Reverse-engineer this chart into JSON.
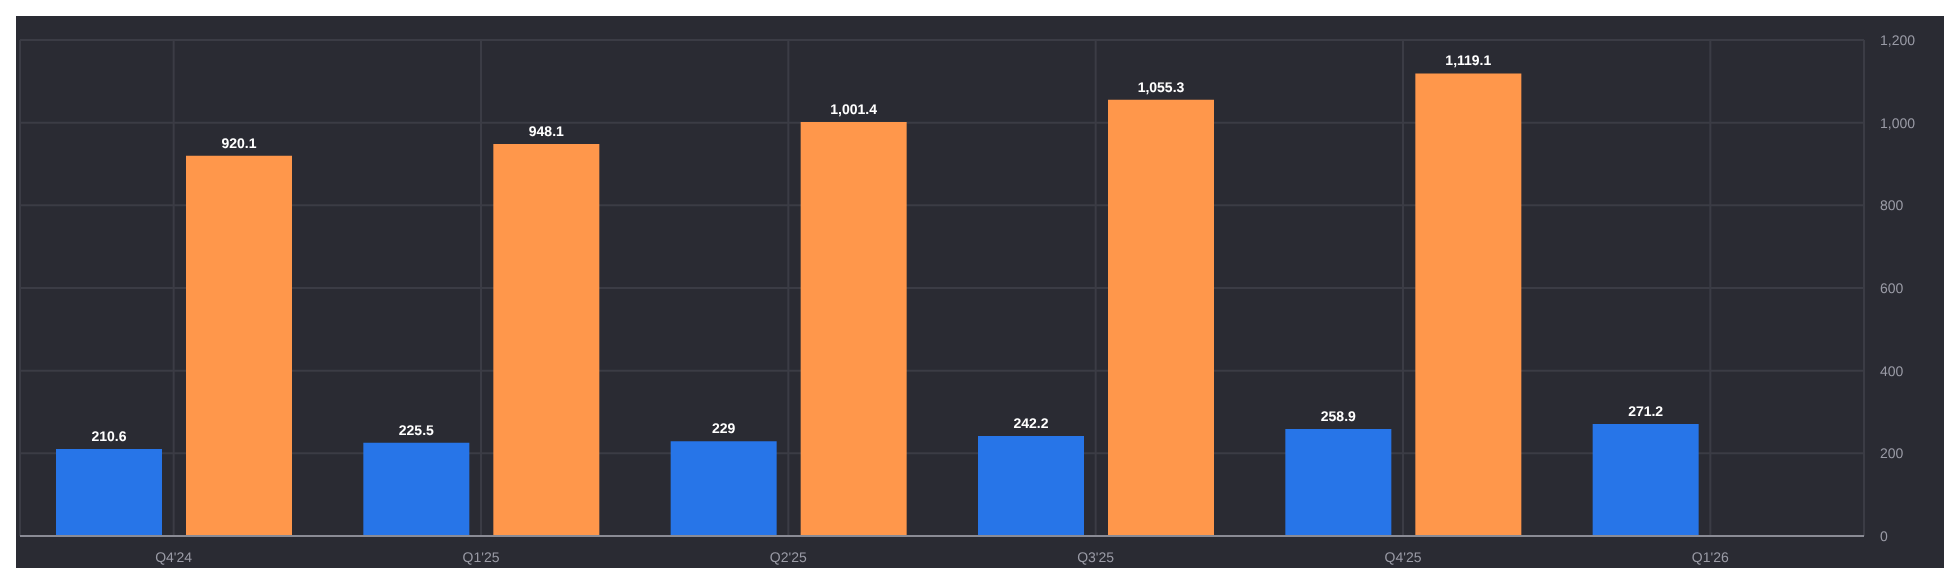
{
  "chart_data": {
    "type": "bar",
    "categories": [
      "Q4'24",
      "Q1'25",
      "Q2'25",
      "Q3'25",
      "Q4'25",
      "Q1'26"
    ],
    "series": [
      {
        "color": "#2775e8",
        "values": [
          210.6,
          225.5,
          229,
          242.2,
          258.9,
          271.2
        ],
        "value_labels": [
          "210.6",
          "225.5",
          "229",
          "242.2",
          "258.9",
          "271.2"
        ]
      },
      {
        "color": "#ff974b",
        "values": [
          920.1,
          948.1,
          1001.4,
          1055.3,
          1119.1,
          null
        ],
        "value_labels": [
          "920.1",
          "948.1",
          "1,001.4",
          "1,055.3",
          "1,119.1",
          null
        ]
      }
    ],
    "ylim": [
      0,
      1200
    ],
    "yticks": [
      0,
      {
        "value": 200,
        "label": "200"
      },
      400,
      600,
      800,
      {
        "value": 1000,
        "label": "1,000"
      },
      {
        "value": 1200,
        "label": "1,200"
      }
    ],
    "grid": true,
    "legend": false
  }
}
